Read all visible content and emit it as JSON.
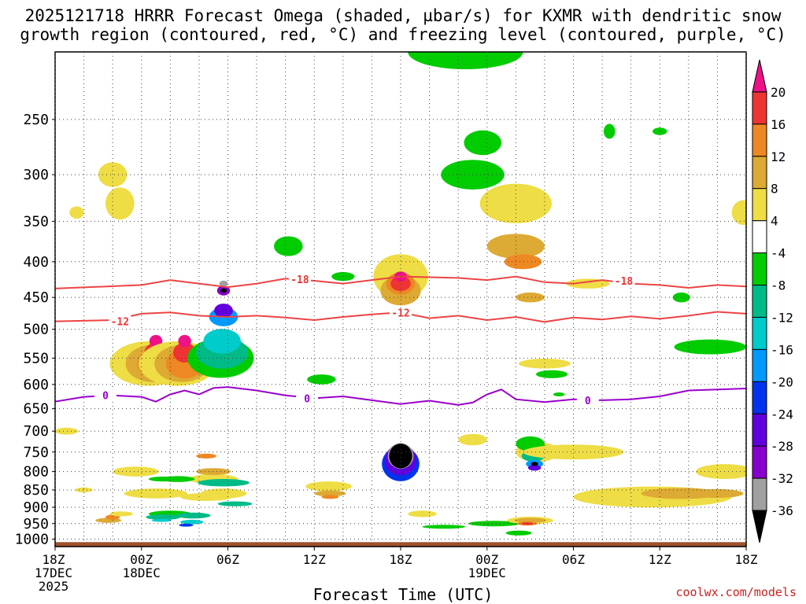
{
  "title": {
    "line1": "2025121718 HRRR Forecast Omega (shaded, µbar/s) for KXMR with dendritic snow",
    "line2": "growth region (contoured, red, °C) and freezing level (contoured, purple, °C)"
  },
  "footer": {
    "xlabel": "Forecast Time (UTC)",
    "credit": "coolwx.com/models"
  },
  "chart_data": {
    "type": "heatmap",
    "title": "2025121718 HRRR Forecast Omega (shaded, µbar/s) for KXMR with dendritic snow growth region (contoured, red, °C) and freezing level (contoured, purple, °C)",
    "xlabel": "Forecast Time (UTC)",
    "ylabel": "",
    "xlim_hours": [
      0,
      48
    ],
    "ylim_hpa": [
      1025,
      200
    ],
    "x_ticks": [
      {
        "h": 0,
        "lines": [
          "18Z",
          "17DEC",
          "2025"
        ]
      },
      {
        "h": 6,
        "lines": [
          "00Z",
          "18DEC"
        ]
      },
      {
        "h": 12,
        "lines": [
          "06Z"
        ]
      },
      {
        "h": 18,
        "lines": [
          "12Z"
        ]
      },
      {
        "h": 24,
        "lines": [
          "18Z"
        ]
      },
      {
        "h": 30,
        "lines": [
          "00Z",
          "19DEC"
        ]
      },
      {
        "h": 36,
        "lines": [
          "06Z"
        ]
      },
      {
        "h": 42,
        "lines": [
          "12Z"
        ]
      },
      {
        "h": 48,
        "lines": [
          "18Z"
        ]
      }
    ],
    "y_ticks": [
      250,
      300,
      350,
      400,
      450,
      500,
      550,
      600,
      650,
      700,
      750,
      800,
      850,
      900,
      950,
      1000
    ],
    "colorbar": {
      "levels": [
        "-36",
        "-32",
        "-28",
        "-24",
        "-20",
        "-16",
        "-12",
        "-8",
        "-4",
        "4",
        "8",
        "12",
        "16",
        "20"
      ],
      "colors": [
        "#000000",
        "#a0a0a0",
        "#8800cc",
        "#6000dd",
        "#0033ee",
        "#0099ff",
        "#00cccc",
        "#00bb88",
        "#00cc00",
        "#ffffff",
        "#eedd44",
        "#ddaa33",
        "#ee8822",
        "#ee3333",
        "#ee1188"
      ]
    },
    "contours": [
      {
        "name": "dendritic -18C",
        "label": "-18",
        "color": "#ee4444",
        "points": [
          [
            0,
            437
          ],
          [
            6,
            432
          ],
          [
            8,
            425
          ],
          [
            10,
            430
          ],
          [
            12,
            435
          ],
          [
            14,
            430
          ],
          [
            16,
            423
          ],
          [
            18,
            426
          ],
          [
            20,
            430
          ],
          [
            22,
            425
          ],
          [
            24,
            420
          ],
          [
            28,
            422
          ],
          [
            30,
            425
          ],
          [
            32,
            420
          ],
          [
            34,
            428
          ],
          [
            36,
            430
          ],
          [
            38,
            425
          ],
          [
            40,
            430
          ],
          [
            42,
            432
          ],
          [
            44,
            436
          ],
          [
            46,
            432
          ],
          [
            48,
            434
          ]
        ]
      },
      {
        "name": "dendritic -12C",
        "label": "-12",
        "color": "#ee4444",
        "points": [
          [
            0,
            487
          ],
          [
            4,
            485
          ],
          [
            6,
            475
          ],
          [
            8,
            473
          ],
          [
            10,
            478
          ],
          [
            12,
            480
          ],
          [
            14,
            478
          ],
          [
            16,
            481
          ],
          [
            18,
            485
          ],
          [
            20,
            480
          ],
          [
            22,
            476
          ],
          [
            24,
            473
          ],
          [
            26,
            482
          ],
          [
            28,
            478
          ],
          [
            30,
            485
          ],
          [
            32,
            480
          ],
          [
            34,
            488
          ],
          [
            36,
            481
          ],
          [
            38,
            484
          ],
          [
            40,
            479
          ],
          [
            42,
            483
          ],
          [
            44,
            478
          ],
          [
            46,
            472
          ],
          [
            48,
            475
          ]
        ]
      },
      {
        "name": "freezing level 0C",
        "label": "0",
        "color": "#9900cc",
        "points": [
          [
            0,
            635
          ],
          [
            2,
            625
          ],
          [
            4,
            622
          ],
          [
            6,
            625
          ],
          [
            7,
            635
          ],
          [
            8,
            620
          ],
          [
            9,
            612
          ],
          [
            10,
            620
          ],
          [
            11,
            607
          ],
          [
            12,
            605
          ],
          [
            14,
            612
          ],
          [
            16,
            622
          ],
          [
            18,
            628
          ],
          [
            20,
            624
          ],
          [
            22,
            632
          ],
          [
            24,
            640
          ],
          [
            26,
            633
          ],
          [
            28,
            642
          ],
          [
            29,
            637
          ],
          [
            30,
            620
          ],
          [
            31,
            610
          ],
          [
            32,
            630
          ],
          [
            34,
            636
          ],
          [
            36,
            630
          ],
          [
            38,
            632
          ],
          [
            40,
            630
          ],
          [
            42,
            624
          ],
          [
            44,
            612
          ],
          [
            46,
            610
          ],
          [
            48,
            608
          ]
        ]
      }
    ],
    "contour_labels": [
      {
        "text": "-18",
        "h": 17.0,
        "p": 424,
        "color": "#ee3333"
      },
      {
        "text": "-18",
        "h": 39.5,
        "p": 426,
        "color": "#ee3333"
      },
      {
        "text": "-12",
        "h": 4.5,
        "p": 487,
        "color": "#ee3333"
      },
      {
        "text": "-12",
        "h": 24.0,
        "p": 473,
        "color": "#ee3333"
      },
      {
        "text": "0",
        "h": 3.5,
        "p": 622,
        "color": "#9900cc"
      },
      {
        "text": "0",
        "h": 17.5,
        "p": 628,
        "color": "#9900cc"
      },
      {
        "text": "0",
        "h": 37.0,
        "p": 632,
        "color": "#9900cc"
      }
    ]
  }
}
